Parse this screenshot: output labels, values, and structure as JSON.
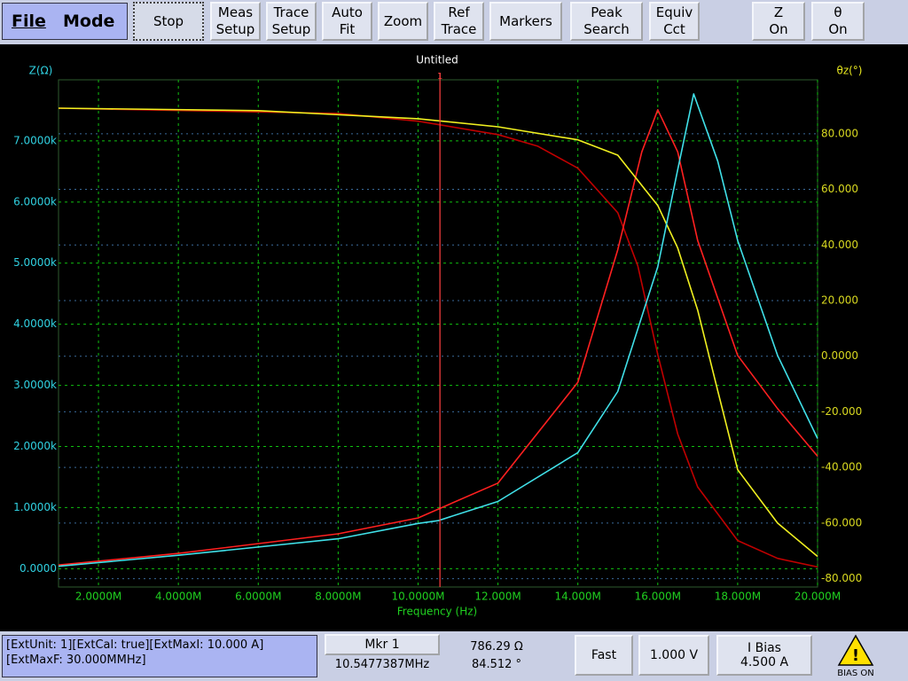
{
  "menu": [
    "File",
    "Mode"
  ],
  "toolbar": [
    [
      "Stop"
    ],
    [
      "Meas",
      "Setup"
    ],
    [
      "Trace",
      "Setup"
    ],
    [
      "Auto",
      "Fit"
    ],
    [
      "Zoom"
    ],
    [
      "Ref",
      "Trace"
    ],
    [
      "Markers"
    ],
    [
      "Peak",
      "Search"
    ],
    [
      "Equiv",
      "Cct"
    ],
    [
      "Z",
      "On"
    ],
    [
      "θ",
      "On"
    ]
  ],
  "chart_data": {
    "type": "line",
    "title": "Untitled",
    "ylabel": "Z(Ω)",
    "y2label": "θz(°)",
    "xlabel": "Frequency (Hz)",
    "xlim": [
      1000000,
      20000000
    ],
    "xticks": [
      {
        "value": 2000000,
        "label": "2.0000M"
      },
      {
        "value": 4000000,
        "label": "4.0000M"
      },
      {
        "value": 6000000,
        "label": "6.0000M"
      },
      {
        "value": 8000000,
        "label": "8.0000M"
      },
      {
        "value": 10000000,
        "label": "10.0000M"
      },
      {
        "value": 12000000,
        "label": "12.000M"
      },
      {
        "value": 14000000,
        "label": "14.000M"
      },
      {
        "value": 16000000,
        "label": "16.000M"
      },
      {
        "value": 18000000,
        "label": "18.000M"
      },
      {
        "value": 20000000,
        "label": "20.000M"
      }
    ],
    "ylim": [
      -300,
      8000
    ],
    "yticks": [
      {
        "value": 0,
        "label": "0.0000"
      },
      {
        "value": 1000,
        "label": "1.0000k"
      },
      {
        "value": 2000,
        "label": "2.0000k"
      },
      {
        "value": 3000,
        "label": "3.0000k"
      },
      {
        "value": 4000,
        "label": "4.0000k"
      },
      {
        "value": 5000,
        "label": "5.0000k"
      },
      {
        "value": 6000,
        "label": "6.0000k"
      },
      {
        "value": 7000,
        "label": "7.0000k"
      }
    ],
    "y2lim": [
      -83,
      99.4
    ],
    "y2ticks": [
      {
        "value": 80,
        "label": "80.000"
      },
      {
        "value": 60,
        "label": "60.000"
      },
      {
        "value": 40,
        "label": "40.000"
      },
      {
        "value": 20,
        "label": "20.000"
      },
      {
        "value": 0,
        "label": "0.0000"
      },
      {
        "value": -20,
        "label": "-20.000"
      },
      {
        "value": -40,
        "label": "-40.000"
      },
      {
        "value": -60,
        "label": "-60.000"
      },
      {
        "value": -80,
        "label": "-80.000"
      }
    ],
    "grid": true,
    "marker": {
      "label": "1",
      "x": 10547738.7,
      "color": "#ff4040"
    },
    "series": [
      {
        "color": "#c00000",
        "axis": "y2",
        "x": [
          1000000,
          8000000,
          10000000,
          12000000,
          13000000,
          14000000,
          15000000,
          15500000,
          16000000,
          16500000,
          17000000,
          18000000,
          19000000,
          20000000
        ],
        "values": [
          89.2,
          87.3,
          84.5,
          79.7,
          75.5,
          67.6,
          51.6,
          32.5,
          0.6,
          -28,
          -47,
          -66.3,
          -72.7,
          -75.8
        ]
      },
      {
        "color": "#ff2020",
        "axis": "y",
        "x": [
          1000000,
          4000000,
          8000000,
          10000000,
          12000000,
          14000000,
          15000000,
          15600000,
          16000000,
          16500000,
          17000000,
          18000000,
          19000000,
          20000000
        ],
        "values": [
          60,
          250,
          570,
          830,
          1400,
          3050,
          5220,
          6820,
          7510,
          6820,
          5370,
          3490,
          2620,
          1840
        ]
      },
      {
        "color": "#f0f020",
        "axis": "y2",
        "x": [
          1000000,
          6000000,
          10000000,
          12000000,
          14000000,
          15000000,
          16000000,
          16500000,
          17000000,
          17500000,
          18000000,
          19000000,
          20000000
        ],
        "values": [
          89.2,
          88.3,
          85.4,
          82.5,
          77.8,
          72.3,
          54.2,
          38.9,
          16.6,
          -12.4,
          -40.8,
          -60,
          -72
        ]
      },
      {
        "color": "#40e0e8",
        "axis": "y",
        "x": [
          1000000,
          4000000,
          8000000,
          10000000,
          10500000,
          12000000,
          14000000,
          15000000,
          16000000,
          16500000,
          16900000,
          17500000,
          18000000,
          19000000,
          20000000
        ],
        "values": [
          40,
          220,
          490,
          740,
          786,
          1100,
          1900,
          2900,
          4940,
          6530,
          7770,
          6670,
          5370,
          3490,
          2130
        ]
      }
    ]
  },
  "status": {
    "ext": [
      "[ExtUnit: 1][ExtCal: true][ExtMaxI:  10.000 A]",
      "[ExtMaxF:  30.000MMHz]"
    ],
    "marker_button": "Mkr 1",
    "marker_freq": "10.5477387MHz",
    "marker_z": "786.29 Ω",
    "marker_theta": "84.512 °",
    "speed": "Fast",
    "level": "1.000 V",
    "bias": [
      "I Bias",
      "4.500 A"
    ],
    "bias_indicator": "BIAS ON"
  }
}
